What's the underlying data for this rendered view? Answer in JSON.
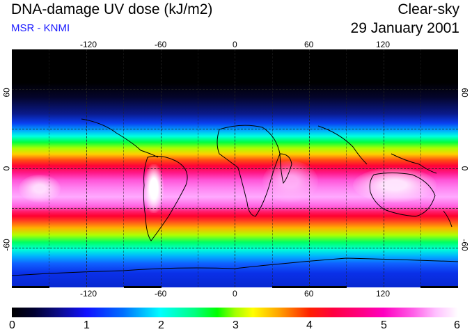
{
  "header": {
    "title": "DNA-damage UV dose (kJ/m2)",
    "source": "MSR - KNMI",
    "sky_condition": "Clear-sky",
    "date": "29 January 2001"
  },
  "map": {
    "projection": "equirectangular",
    "lon_range": [
      -180,
      180
    ],
    "lat_range": [
      -90,
      90
    ],
    "lon_ticks": [
      "-120",
      "-60",
      "0",
      "60",
      "120"
    ],
    "lat_ticks_left": [
      "60",
      "0",
      "-60"
    ],
    "lat_ticks_right": [
      "60",
      "0",
      "-60"
    ],
    "gridlines": "dashed"
  },
  "colorbar": {
    "labels": [
      "0",
      "1",
      "2",
      "3",
      "4",
      "5",
      "6"
    ],
    "range": [
      0,
      6
    ]
  },
  "colors": {
    "subtitle": "#1a1aff",
    "high_dose": "#ffccff",
    "low_dose": "#000000"
  }
}
